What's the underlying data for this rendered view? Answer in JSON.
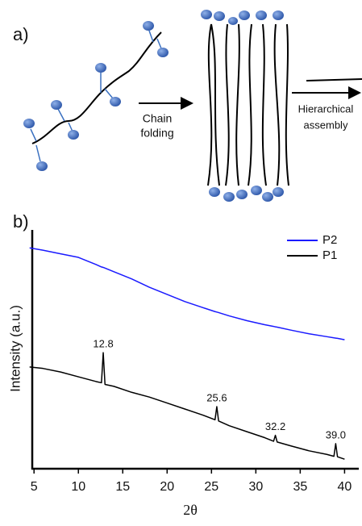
{
  "schematic": {
    "panel_label": "a)",
    "step1": [
      "Chain",
      "folding"
    ],
    "step2": [
      "Hierarchical",
      "assembly"
    ]
  },
  "chart_data": {
    "type": "line",
    "panel_label": "b)",
    "x_label": "2θ",
    "y_label": "Intensity (a.u.)",
    "x": [
      4.5,
      6,
      8,
      10,
      12,
      12.6,
      12.8,
      13.0,
      14,
      16,
      18,
      20,
      22,
      24,
      25.4,
      25.6,
      25.8,
      27,
      29,
      31,
      32.0,
      32.2,
      32.4,
      34,
      36,
      38,
      38.8,
      39.0,
      39.2,
      40
    ],
    "series": [
      {
        "name": "P2",
        "color": "#1a1aff",
        "values": [
          92.5,
          91.5,
          90,
          88.5,
          85.5,
          84.5,
          84.3,
          84,
          82.5,
          79.5,
          76,
          73,
          70,
          67.5,
          65.8,
          65.6,
          65.4,
          64,
          62,
          60.3,
          59.6,
          59.4,
          59.3,
          58,
          56.5,
          55.3,
          54.8,
          54.7,
          54.6,
          54
        ]
      },
      {
        "name": "P1",
        "color": "#000000",
        "values": [
          42.6,
          42,
          40.5,
          38.5,
          36.5,
          36,
          48.6,
          35.3,
          34.5,
          32,
          30,
          27.5,
          25,
          22.5,
          20.5,
          26,
          20,
          18,
          15.5,
          13,
          11.5,
          14,
          11.2,
          9.5,
          7.5,
          6,
          5.2,
          10.5,
          5,
          4
        ]
      }
    ],
    "annotations": [
      {
        "label": "12.8",
        "x": 12.8
      },
      {
        "label": "25.6",
        "x": 25.6
      },
      {
        "label": "32.2",
        "x": 32.2
      },
      {
        "label": "39.0",
        "x": 39.0
      }
    ],
    "xlim": [
      4.8,
      41.6
    ],
    "ylim": [
      0,
      100
    ],
    "xticks": [
      5,
      10,
      15,
      20,
      25,
      30,
      35,
      40
    ],
    "legend": "upper right"
  }
}
